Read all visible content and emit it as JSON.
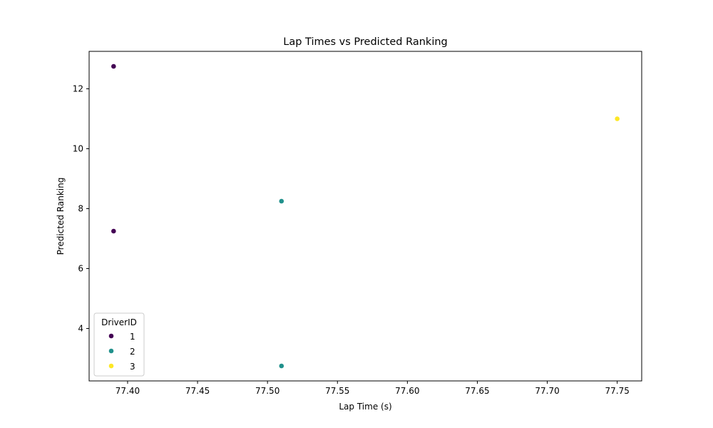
{
  "chart_data": {
    "type": "scatter",
    "title": "Lap Times vs Predicted Ranking",
    "xlabel": "Lap Time (s)",
    "ylabel": "Predicted Ranking",
    "xlim": [
      77.3725,
      77.7675
    ],
    "ylim": [
      2.25,
      13.25
    ],
    "x_ticks": [
      "77.40",
      "77.45",
      "77.50",
      "77.55",
      "77.60",
      "77.65",
      "77.70",
      "77.75"
    ],
    "x_tick_values": [
      77.4,
      77.45,
      77.5,
      77.55,
      77.6,
      77.65,
      77.7,
      77.75
    ],
    "y_ticks": [
      "4",
      "6",
      "8",
      "10",
      "12"
    ],
    "y_tick_values": [
      4,
      6,
      8,
      10,
      12
    ],
    "grid": false,
    "legend": {
      "title": "DriverID",
      "placement": "lower-left"
    },
    "series": [
      {
        "name": "1",
        "color": "#440154",
        "points": [
          {
            "x": 77.39,
            "y": 12.75
          },
          {
            "x": 77.39,
            "y": 7.25
          }
        ]
      },
      {
        "name": "2",
        "color": "#21918c",
        "points": [
          {
            "x": 77.51,
            "y": 8.25
          },
          {
            "x": 77.51,
            "y": 2.75
          }
        ]
      },
      {
        "name": "3",
        "color": "#fde725",
        "points": [
          {
            "x": 77.75,
            "y": 11.0
          }
        ]
      }
    ]
  }
}
